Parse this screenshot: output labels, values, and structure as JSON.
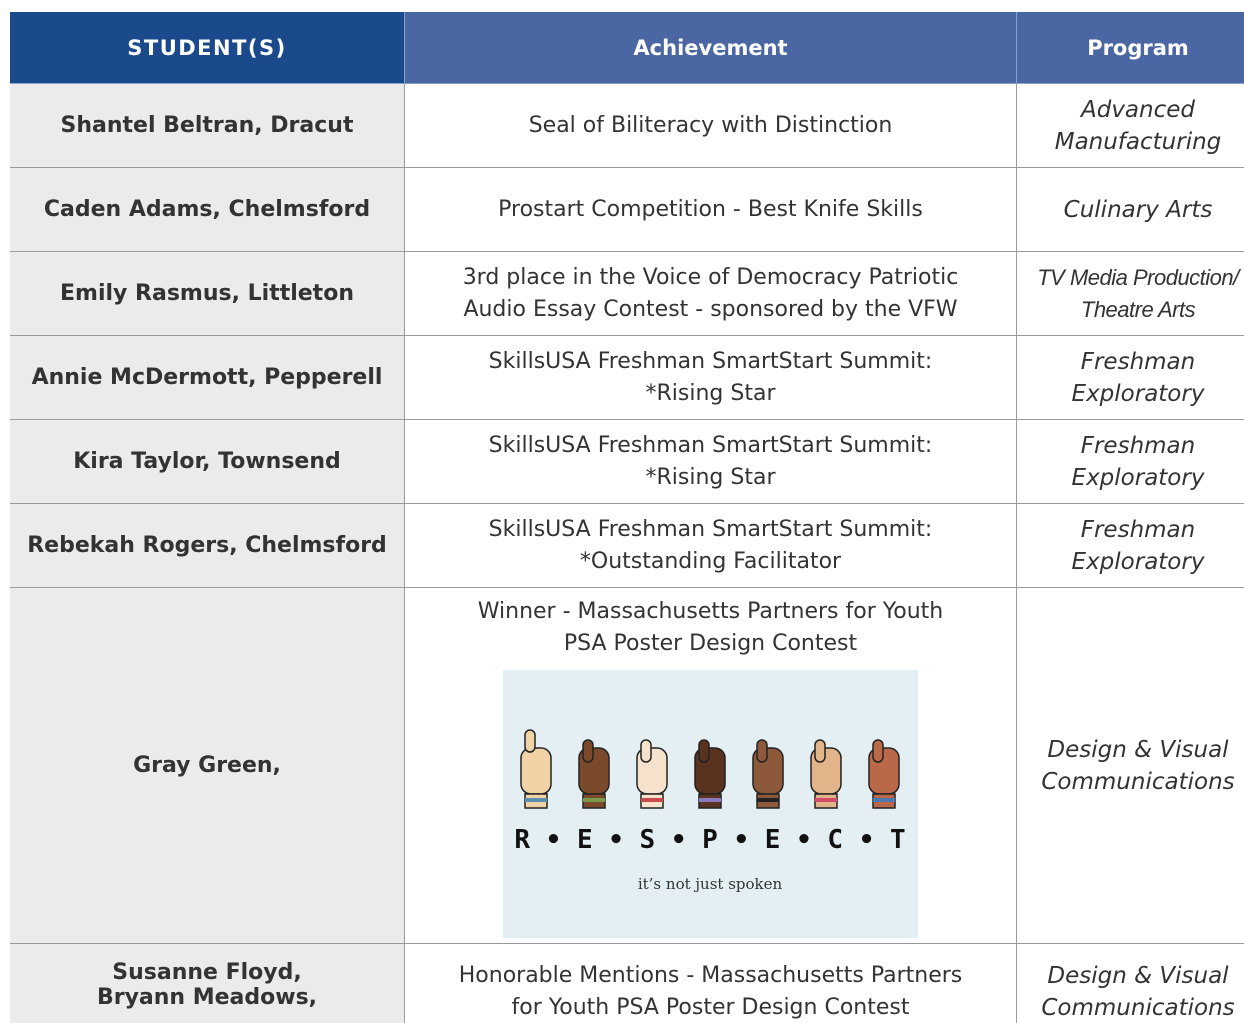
{
  "header": {
    "columns": [
      "STUDENT(S)",
      "Achievement",
      "Program"
    ]
  },
  "table": {
    "rows": [
      {
        "student": [
          "Shantel Beltran, Dracut"
        ],
        "achievement": [
          "Seal of Biliteracy with Distinction"
        ],
        "program": [
          "Advanced",
          "Manufacturing"
        ]
      },
      {
        "student": [
          "Caden Adams, Chelmsford"
        ],
        "achievement": [
          "Prostart Competition - Best Knife Skills"
        ],
        "program": [
          "Culinary Arts"
        ]
      },
      {
        "student": [
          "Emily Rasmus, Littleton"
        ],
        "achievement": [
          "3rd place in the Voice of  Democracy Patriotic",
          "Audio Essay Contest - sponsored by the VFW"
        ],
        "program": [
          "TV Media Production/",
          "Theatre Arts"
        ]
      },
      {
        "student": [
          "Annie McDermott, Pepperell"
        ],
        "achievement": [
          "SkillsUSA Freshman SmartStart Summit:",
          "*Rising Star"
        ],
        "program": [
          "Freshman",
          "Exploratory"
        ]
      },
      {
        "student": [
          "Kira Taylor, Townsend"
        ],
        "achievement": [
          "SkillsUSA Freshman SmartStart Summit:",
          "*Rising Star"
        ],
        "program": [
          "Freshman",
          "Exploratory"
        ]
      },
      {
        "student": [
          "Rebekah Rogers, Chelmsford"
        ],
        "achievement": [
          "SkillsUSA Freshman SmartStart Summit:",
          "*Outstanding Facilitator"
        ],
        "program": [
          "Freshman",
          "Exploratory"
        ]
      },
      {
        "student": [
          "Gray Green,"
        ],
        "achievement": [
          "Winner  - Massachusetts Partners for Youth",
          "PSA Poster Design Contest"
        ],
        "program": [
          "Design & Visual",
          "Communications"
        ],
        "poster": {
          "letters": "R • E • S • P • E • C • T",
          "tagline": "it’s not just spoken"
        }
      },
      {
        "student": [
          "Susanne Floyd,",
          "Bryann Meadows,"
        ],
        "achievement": [
          "Honorable Mentions  - Massachusetts Partners",
          "for Youth PSA Poster Design Contest"
        ],
        "program": [
          "Design & Visual",
          "Communications"
        ]
      }
    ]
  }
}
